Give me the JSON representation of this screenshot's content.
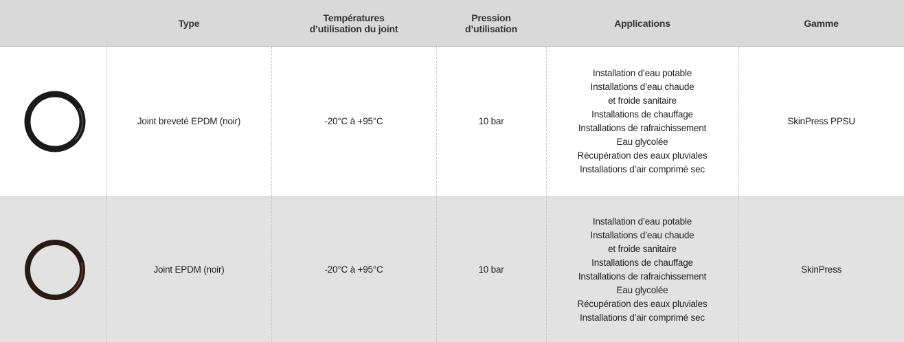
{
  "header": {
    "columns": [
      [
        "Type"
      ],
      [
        "Températures",
        "d’utilisation du joint"
      ],
      [
        "Pression",
        "d’utilisation"
      ],
      [
        "Applications"
      ],
      [
        "Gamme"
      ]
    ]
  },
  "rows": [
    {
      "type": "Joint breveté EPDM (noir)",
      "temperatures": "-20°C à +95°C",
      "pression": "10 bar",
      "applications": [
        "Installation d’eau potable",
        "Installations d’eau chaude",
        "et froide sanitaire",
        "Installations de chauffage",
        "Installations de rafraichissement",
        "Eau glycolée",
        "Récupération des eaux pluviales",
        "Installations d’air comprimé sec"
      ],
      "gamme": "SkinPress PPSU"
    },
    {
      "type": "Joint EPDM (noir)",
      "temperatures": "-20°C à +95°C",
      "pression": "10 bar",
      "applications": [
        "Installation d’eau potable",
        "Installations d’eau chaude",
        "et froide sanitaire",
        "Installations de chauffage",
        "Installations de rafraichissement",
        "Eau glycolée",
        "Récupération des eaux pluviales",
        "Installations d’air comprimé sec"
      ],
      "gamme": "SkinPress"
    }
  ]
}
